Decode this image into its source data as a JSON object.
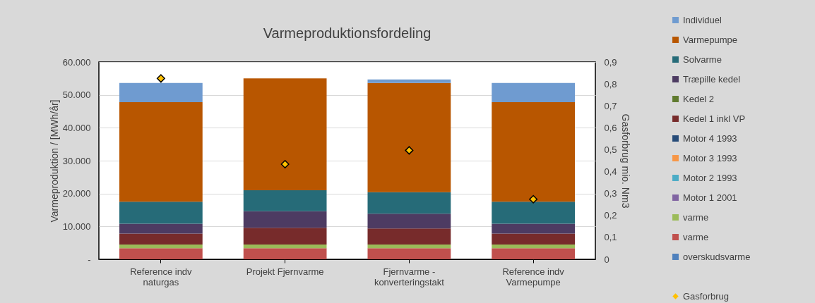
{
  "chart_data": {
    "type": "bar",
    "title": "Varmeproduktionsfordeling",
    "ylabel": "Varmeproduktion / [MWh/år]",
    "y2label": "Gasforbrug mio. Nm3",
    "categories": [
      "Reference indv naturgas",
      "Projekt Fjernvarme",
      "Fjernvarme - konverteringstakt",
      "Reference indv Varmepumpe"
    ],
    "stacked": true,
    "grid": "y",
    "legend": "right",
    "ylim": [
      0,
      60000
    ],
    "yticks": [
      {
        "value": 0,
        "label": "-"
      },
      {
        "value": 10000,
        "label": "10.000"
      },
      {
        "value": 20000,
        "label": "20.000"
      },
      {
        "value": 30000,
        "label": "30.000"
      },
      {
        "value": 40000,
        "label": "40.000"
      },
      {
        "value": 50000,
        "label": "50.000"
      },
      {
        "value": 60000,
        "label": "60.000"
      }
    ],
    "y2lim": [
      0,
      0.9
    ],
    "y2ticks": [
      0,
      {
        "value": 0.1,
        "label": "0,1"
      },
      {
        "value": 0.2,
        "label": "0,2"
      },
      {
        "value": 0.3,
        "label": "0,3"
      },
      {
        "value": 0.4,
        "label": "0,4"
      },
      {
        "value": 0.5,
        "label": "0,5"
      },
      {
        "value": 0.6,
        "label": "0,6"
      },
      {
        "value": 0.7,
        "label": "0,7"
      },
      {
        "value": 0.8,
        "label": "0,8"
      },
      {
        "value": 0.9,
        "label": "0,9"
      }
    ],
    "series": [
      {
        "name": "overskudsvarme",
        "color": "#4f81bd",
        "values": [
          0,
          0,
          0,
          0
        ]
      },
      {
        "name": "varme",
        "color": "#c0504d",
        "values": [
          3400,
          3400,
          3400,
          3400
        ]
      },
      {
        "name": "varme",
        "color": "#9bbb59",
        "values": [
          1100,
          1100,
          1100,
          1100
        ]
      },
      {
        "name": "Motor 1 2001",
        "color": "#8064a2",
        "values": [
          0,
          0,
          0,
          0
        ]
      },
      {
        "name": "Motor 2 1993",
        "color": "#4bacc6",
        "values": [
          0,
          0,
          0,
          0
        ]
      },
      {
        "name": "Motor 3 1993",
        "color": "#f79646",
        "values": [
          0,
          0,
          0,
          0
        ]
      },
      {
        "name": "Motor 4 1993",
        "color": "#264b78",
        "values": [
          0,
          0,
          0,
          0
        ]
      },
      {
        "name": "Kedel 1 inkl VP",
        "color": "#772b2b",
        "values": [
          3300,
          5100,
          4900,
          3300
        ]
      },
      {
        "name": "Kedel 2",
        "color": "#5f7a2e",
        "values": [
          0,
          0,
          0,
          0
        ]
      },
      {
        "name": "Træpille kedel",
        "color": "#4d3b62",
        "values": [
          3000,
          5000,
          4500,
          3000
        ]
      },
      {
        "name": "Solvarme",
        "color": "#266b78",
        "values": [
          6700,
          6400,
          6500,
          6700
        ]
      },
      {
        "name": "Varmepumpe",
        "color": "#b85600",
        "values": [
          30300,
          34000,
          33200,
          30300
        ]
      },
      {
        "name": "Individuel",
        "color": "#6f9bd0",
        "values": [
          5800,
          0,
          1100,
          5800
        ]
      },
      {
        "name": "Gasforbrug",
        "type": "scatter",
        "axis": "y2",
        "marker": "diamond",
        "color": "#ffc000",
        "x": [
          "Reference indv naturgas",
          "Projekt Fjernvarme",
          "Fjernvarme - konverteringstakt",
          "Reference indv Varmepumpe"
        ],
        "values": [
          0.825,
          0.434,
          0.497,
          0.274
        ]
      }
    ]
  }
}
